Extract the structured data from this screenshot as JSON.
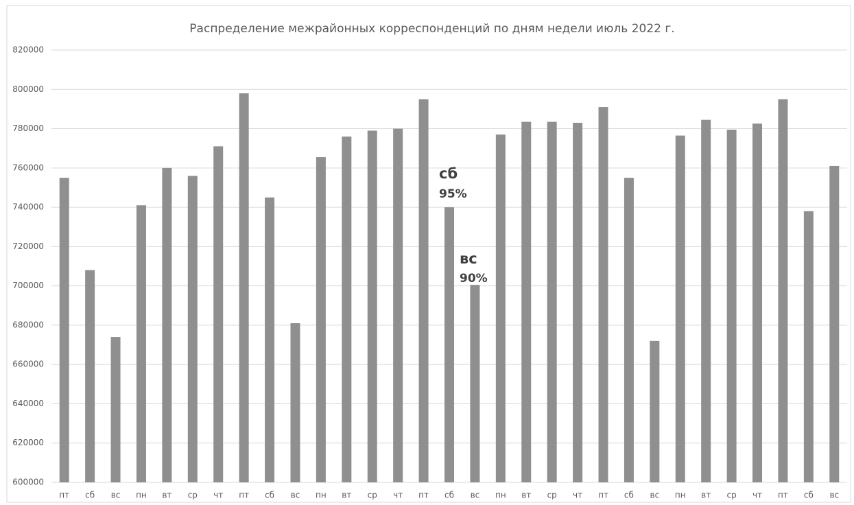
{
  "chart_data": {
    "type": "bar",
    "title": "Распределение межрайонных корреспонденций по дням недели июль 2022 г.",
    "categories": [
      "пт",
      "сб",
      "вс",
      "пн",
      "вт",
      "ср",
      "чт",
      "пт",
      "сб",
      "вс",
      "пн",
      "вт",
      "ср",
      "чт",
      "пт",
      "сб",
      "вс",
      "пн",
      "вт",
      "ср",
      "чт",
      "пт",
      "сб",
      "вс",
      "пн",
      "вт",
      "ср",
      "чт",
      "пт",
      "сб",
      "вс"
    ],
    "values": [
      755000,
      708000,
      674000,
      741000,
      760000,
      756000,
      771000,
      798000,
      745000,
      681000,
      765500,
      776000,
      779000,
      780000,
      795000,
      740000,
      700500,
      777000,
      783500,
      783500,
      783000,
      791000,
      755000,
      672000,
      776500,
      784500,
      779500,
      782600,
      795000,
      738000,
      761000
    ],
    "color": "#8f8f8f",
    "ylim": [
      600000,
      820000
    ],
    "yticks": [
      600000,
      620000,
      640000,
      660000,
      680000,
      700000,
      720000,
      740000,
      760000,
      780000,
      800000,
      820000
    ],
    "grid": true,
    "annotations": [
      {
        "day": "сб",
        "share": "95%"
      },
      {
        "day": "вс",
        "share": "90%"
      }
    ]
  }
}
